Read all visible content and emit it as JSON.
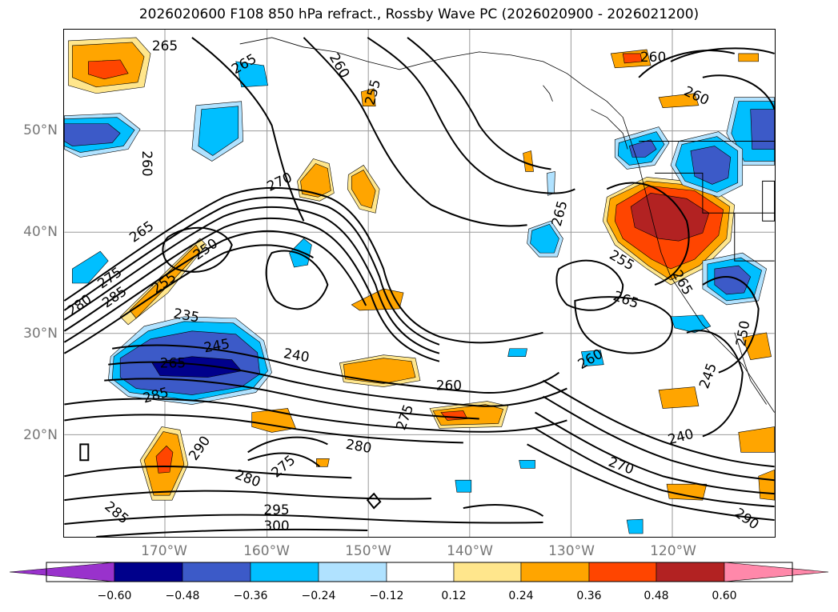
{
  "title": "2026020600 F108 850 hPa refract., Rossby Wave PC (2026020900 - 2026021200)",
  "axes": {
    "lat_labels": [
      "50°N",
      "40°N",
      "30°N",
      "20°N"
    ],
    "lon_labels": [
      "170°W",
      "160°W",
      "150°W",
      "140°W",
      "130°W",
      "120°W"
    ]
  },
  "colorbar": {
    "ticks": [
      "−0.60",
      "−0.48",
      "−0.36",
      "−0.24",
      "−0.12",
      "0.12",
      "0.24",
      "0.36",
      "0.48",
      "0.60"
    ],
    "colors": [
      "#9932cc",
      "#00008b",
      "#3c5ac8",
      "#00bfff",
      "#b0e2ff",
      "#ffffff",
      "#ffe68c",
      "#ffa500",
      "#ff4500",
      "#b22222",
      "#ff88aa"
    ]
  },
  "contour_labels": [
    "265",
    "265",
    "260",
    "255",
    "260",
    "260",
    "260",
    "270",
    "265",
    "265",
    "275",
    "280",
    "285",
    "250",
    "255",
    "235",
    "245",
    "265",
    "285",
    "240",
    "260",
    "275",
    "265",
    "260",
    "255",
    "265",
    "250",
    "245",
    "240",
    "270",
    "290",
    "280",
    "275",
    "280",
    "285",
    "295",
    "300",
    "290"
  ]
}
